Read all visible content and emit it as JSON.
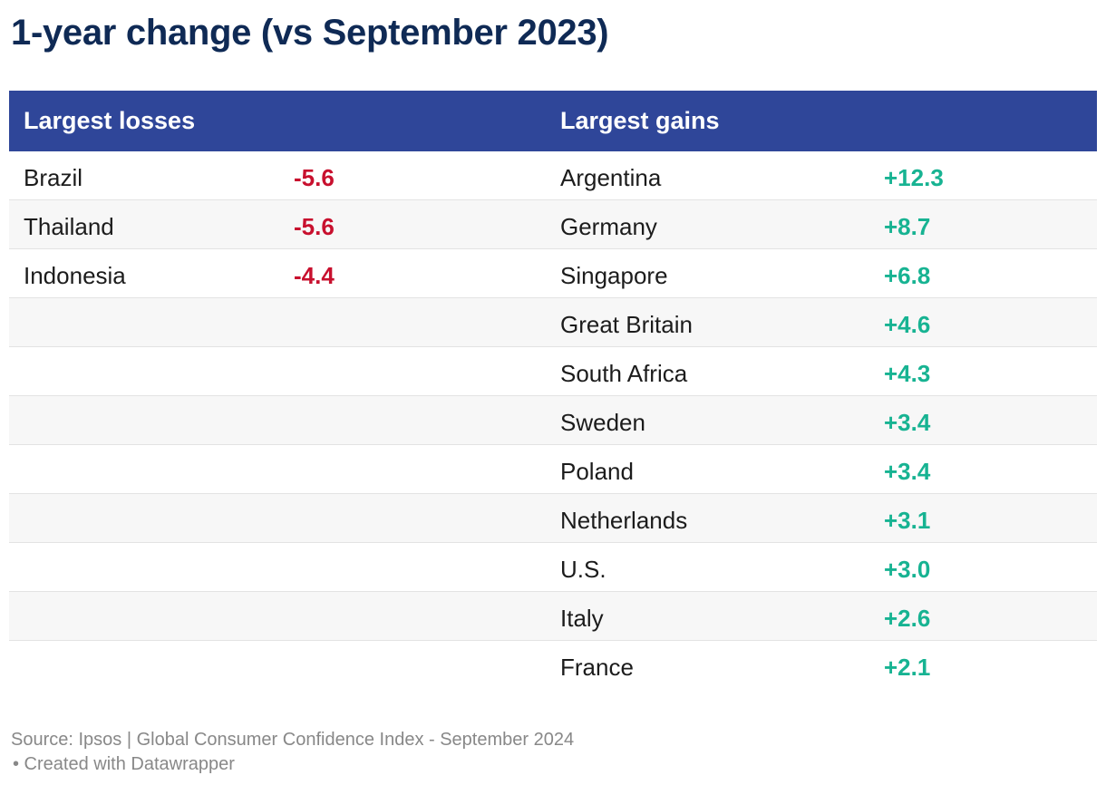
{
  "title": "1-year change (vs September 2023)",
  "chart_data": {
    "type": "table",
    "columns": [
      "Largest losses",
      "",
      "Largest gains",
      ""
    ],
    "losses": [
      {
        "country": "Brazil",
        "value": "-5.6"
      },
      {
        "country": "Thailand",
        "value": "-5.6"
      },
      {
        "country": "Indonesia",
        "value": "-4.4"
      }
    ],
    "gains": [
      {
        "country": "Argentina",
        "value": "+12.3"
      },
      {
        "country": "Germany",
        "value": "+8.7"
      },
      {
        "country": "Singapore",
        "value": "+6.8"
      },
      {
        "country": "Great Britain",
        "value": "+4.6"
      },
      {
        "country": "South Africa",
        "value": "+4.3"
      },
      {
        "country": "Sweden",
        "value": "+3.4"
      },
      {
        "country": "Poland",
        "value": "+3.4"
      },
      {
        "country": "Netherlands",
        "value": "+3.1"
      },
      {
        "country": "U.S.",
        "value": "+3.0"
      },
      {
        "country": "Italy",
        "value": "+2.6"
      },
      {
        "country": "France",
        "value": "+2.1"
      }
    ]
  },
  "footer": {
    "source": "Source: Ipsos | Global Consumer Confidence Index - September 2024",
    "credit": "• Created with Datawrapper"
  },
  "colors": {
    "header_bg": "#2f4699",
    "title": "#0f2a55",
    "negative": "#c8102e",
    "positive": "#17b392"
  }
}
